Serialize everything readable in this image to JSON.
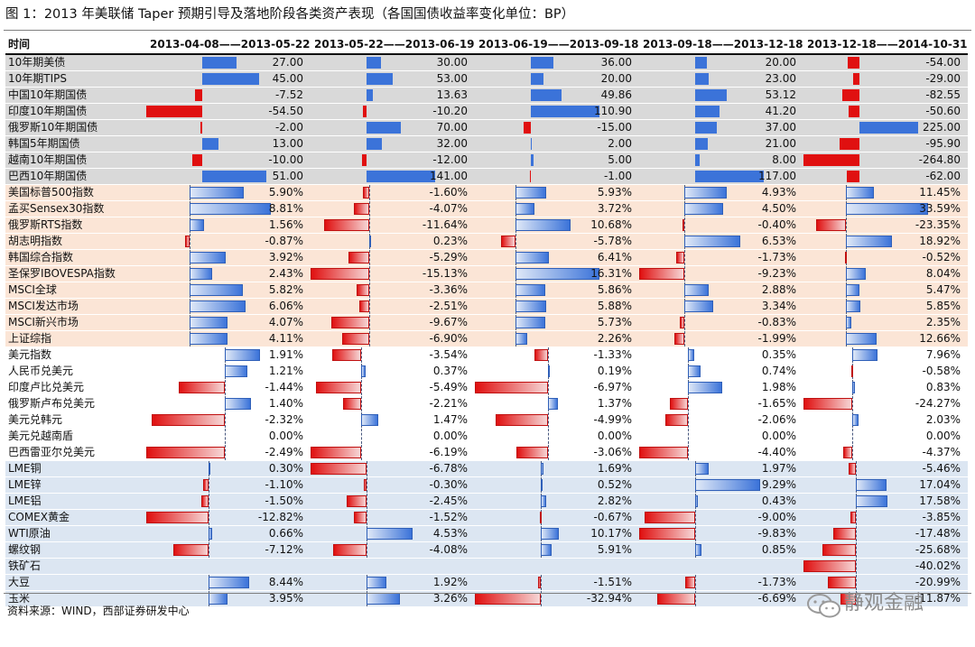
{
  "title": "图 1：2013 年美联储 Taper 预期引导及落地阶段各类资产表现（各国国债收益率变化单位：BP）",
  "source": "资料来源：WIND，西部证券研发中心",
  "watermark": "静观金融",
  "colors": {
    "positive_bar": "#3b73d9",
    "negative_bar": "#e01010",
    "bonds_bg": "#d9d9d9",
    "equities_bg": "#fbe5d6",
    "fx_bg": "#ffffff",
    "commodities_bg": "#dce6f2"
  },
  "chart_data": {
    "type": "table",
    "header_label": "时间",
    "columns": [
      "2013-04-08——2013-05-22",
      "2013-05-22——2013-06-19",
      "2013-06-19——2013-09-18",
      "2013-09-18——2013-12-18",
      "2013-12-18——2014-10-31"
    ],
    "groups": [
      {
        "name": "bonds",
        "rows": [
          {
            "label": "10年期美债",
            "values": [
              27.0,
              30.0,
              36.0,
              20.0,
              -54.0
            ],
            "text": [
              "27.00",
              "30.00",
              "36.00",
              "20.00",
              "-54.00"
            ]
          },
          {
            "label": "10年期TIPS",
            "values": [
              45.0,
              53.0,
              20.0,
              23.0,
              -29.0
            ],
            "text": [
              "45.00",
              "53.00",
              "20.00",
              "23.00",
              "-29.00"
            ]
          },
          {
            "label": "中国10年期国债",
            "values": [
              -7.52,
              13.63,
              49.86,
              53.12,
              -82.55
            ],
            "text": [
              "-7.52",
              "13.63",
              "49.86",
              "53.12",
              "-82.55"
            ]
          },
          {
            "label": "印度10年期国债",
            "values": [
              -54.5,
              -10.2,
              110.9,
              41.2,
              -50.6
            ],
            "text": [
              "-54.50",
              "-10.20",
              "110.90",
              "41.20",
              "-50.60"
            ]
          },
          {
            "label": "俄罗斯10年期国债",
            "values": [
              -2.0,
              70.0,
              -15.0,
              37.0,
              225.0
            ],
            "text": [
              "-2.00",
              "70.00",
              "-15.00",
              "37.00",
              "225.00"
            ]
          },
          {
            "label": "韩国5年期国债",
            "values": [
              13.0,
              32.0,
              2.0,
              21.0,
              -95.9
            ],
            "text": [
              "13.00",
              "32.00",
              "2.00",
              "21.00",
              "-95.90"
            ]
          },
          {
            "label": "越南10年期国债",
            "values": [
              -10.0,
              -12.0,
              5.0,
              8.0,
              -264.8
            ],
            "text": [
              "-10.00",
              "-12.00",
              "5.00",
              "8.00",
              "-264.80"
            ]
          },
          {
            "label": "巴西10年期国债",
            "values": [
              51.0,
              141.0,
              -1.0,
              117.0,
              -62.0
            ],
            "text": [
              "51.00",
              "141.00",
              "-1.00",
              "117.00",
              "-62.00"
            ]
          }
        ]
      },
      {
        "name": "equities",
        "rows": [
          {
            "label": "美国标普500指数",
            "values": [
              5.9,
              -1.6,
              5.93,
              4.93,
              11.45
            ],
            "text": [
              "5.90%",
              "-1.60%",
              "5.93%",
              "4.93%",
              "11.45%"
            ]
          },
          {
            "label": "孟买Sensex30指数",
            "values": [
              8.81,
              -4.07,
              3.72,
              4.5,
              33.59
            ],
            "text": [
              "8.81%",
              "-4.07%",
              "3.72%",
              "4.50%",
              "33.59%"
            ]
          },
          {
            "label": "俄罗斯RTS指数",
            "values": [
              1.56,
              -11.64,
              10.68,
              -0.4,
              -23.35
            ],
            "text": [
              "1.56%",
              "-11.64%",
              "10.68%",
              "-0.40%",
              "-23.35%"
            ]
          },
          {
            "label": "胡志明指数",
            "values": [
              -0.87,
              0.23,
              -5.78,
              6.53,
              18.92
            ],
            "text": [
              "-0.87%",
              "0.23%",
              "-5.78%",
              "6.53%",
              "18.92%"
            ]
          },
          {
            "label": "韩国综合指数",
            "values": [
              3.92,
              -5.29,
              6.41,
              -1.73,
              -0.52
            ],
            "text": [
              "3.92%",
              "-5.29%",
              "6.41%",
              "-1.73%",
              "-0.52%"
            ]
          },
          {
            "label": "圣保罗IBOVESPA指数",
            "values": [
              2.43,
              -15.13,
              16.31,
              -9.23,
              8.04
            ],
            "text": [
              "2.43%",
              "-15.13%",
              "16.31%",
              "-9.23%",
              "8.04%"
            ]
          },
          {
            "label": "MSCI全球",
            "values": [
              5.82,
              -3.36,
              5.86,
              2.88,
              5.47
            ],
            "text": [
              "5.82%",
              "-3.36%",
              "5.86%",
              "2.88%",
              "5.47%"
            ]
          },
          {
            "label": "MSCI发达市场",
            "values": [
              6.06,
              -2.51,
              5.88,
              3.34,
              5.85
            ],
            "text": [
              "6.06%",
              "-2.51%",
              "5.88%",
              "3.34%",
              "5.85%"
            ]
          },
          {
            "label": "MSCI新兴市场",
            "values": [
              4.07,
              -9.67,
              5.73,
              -0.83,
              2.35
            ],
            "text": [
              "4.07%",
              "-9.67%",
              "5.73%",
              "-0.83%",
              "2.35%"
            ]
          },
          {
            "label": "上证综指",
            "values": [
              4.11,
              -6.9,
              2.26,
              -1.99,
              12.66
            ],
            "text": [
              "4.11%",
              "-6.90%",
              "2.26%",
              "-1.99%",
              "12.66%"
            ]
          }
        ]
      },
      {
        "name": "fx",
        "rows": [
          {
            "label": "美元指数",
            "values": [
              1.91,
              -3.54,
              -1.33,
              0.35,
              7.96
            ],
            "text": [
              "1.91%",
              "-3.54%",
              "-1.33%",
              "0.35%",
              "7.96%"
            ]
          },
          {
            "label": "人民币兑美元",
            "values": [
              1.21,
              0.37,
              0.19,
              0.74,
              -0.58
            ],
            "text": [
              "1.21%",
              "0.37%",
              "0.19%",
              "0.74%",
              "-0.58%"
            ]
          },
          {
            "label": "印度卢比兑美元",
            "values": [
              -1.44,
              -5.49,
              -6.97,
              1.98,
              0.83
            ],
            "text": [
              "-1.44%",
              "-5.49%",
              "-6.97%",
              "1.98%",
              "0.83%"
            ]
          },
          {
            "label": "俄罗斯卢布兑美元",
            "values": [
              1.4,
              -2.21,
              1.37,
              -1.65,
              -24.27
            ],
            "text": [
              "1.40%",
              "-2.21%",
              "1.37%",
              "-1.65%",
              "-24.27%"
            ]
          },
          {
            "label": "美元兑韩元",
            "values": [
              -2.32,
              1.47,
              -4.99,
              -2.06,
              2.03
            ],
            "text": [
              "-2.32%",
              "1.47%",
              "-4.99%",
              "-2.06%",
              "2.03%"
            ]
          },
          {
            "label": "美元兑越南盾",
            "values": [
              0.0,
              0.0,
              0.0,
              0.0,
              0.0
            ],
            "text": [
              "0.00%",
              "0.00%",
              "0.00%",
              "0.00%",
              "0.00%"
            ]
          },
          {
            "label": "巴西雷亚尔兑美元",
            "values": [
              -2.49,
              -6.19,
              -3.06,
              -4.4,
              -4.37
            ],
            "text": [
              "-2.49%",
              "-6.19%",
              "-3.06%",
              "-4.40%",
              "-4.37%"
            ]
          }
        ]
      },
      {
        "name": "commodities",
        "rows": [
          {
            "label": "LME铜",
            "values": [
              0.3,
              -6.78,
              1.69,
              1.97,
              -5.46
            ],
            "text": [
              "0.30%",
              "-6.78%",
              "1.69%",
              "1.97%",
              "-5.46%"
            ]
          },
          {
            "label": "LME锌",
            "values": [
              -1.1,
              -0.3,
              0.52,
              9.29,
              17.04
            ],
            "text": [
              "-1.10%",
              "-0.30%",
              "0.52%",
              "9.29%",
              "17.04%"
            ]
          },
          {
            "label": "LME铝",
            "values": [
              -1.5,
              -2.45,
              2.82,
              0.43,
              17.58
            ],
            "text": [
              "-1.50%",
              "-2.45%",
              "2.82%",
              "0.43%",
              "17.58%"
            ]
          },
          {
            "label": "COMEX黄金",
            "values": [
              -12.82,
              -1.52,
              -0.67,
              -9.0,
              -3.85
            ],
            "text": [
              "-12.82%",
              "-1.52%",
              "-0.67%",
              "-9.00%",
              "-3.85%"
            ]
          },
          {
            "label": "WTI原油",
            "values": [
              0.66,
              4.53,
              10.17,
              -9.83,
              -17.48
            ],
            "text": [
              "0.66%",
              "4.53%",
              "10.17%",
              "-9.83%",
              "-17.48%"
            ]
          },
          {
            "label": "螺纹钢",
            "values": [
              -7.12,
              -4.08,
              5.91,
              0.85,
              -25.68
            ],
            "text": [
              "-7.12%",
              "-4.08%",
              "5.91%",
              "0.85%",
              "-25.68%"
            ]
          },
          {
            "label": "铁矿石",
            "values": [
              null,
              null,
              null,
              null,
              -40.02
            ],
            "text": [
              "",
              "",
              "",
              "",
              "-40.02%"
            ]
          },
          {
            "label": "大豆",
            "values": [
              8.44,
              1.92,
              -1.51,
              -1.73,
              -20.99
            ],
            "text": [
              "8.44%",
              "1.92%",
              "-1.51%",
              "-1.73%",
              "-20.99%"
            ]
          },
          {
            "label": "玉米",
            "values": [
              3.95,
              3.26,
              -32.94,
              -6.69,
              -11.87
            ],
            "text": [
              "3.95%",
              "3.26%",
              "-32.94%",
              "-6.69%",
              "-11.87%"
            ]
          }
        ]
      }
    ]
  }
}
